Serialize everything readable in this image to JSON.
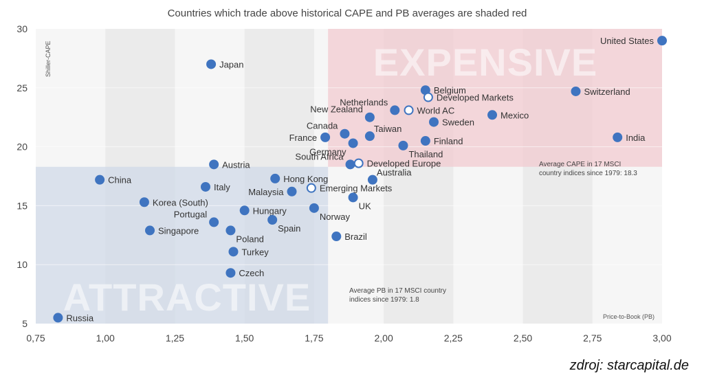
{
  "chart_data": {
    "type": "scatter",
    "title": "Countries which trade above historical CAPE and PB averages are shaded red",
    "xlabel": "Price-to-Book (PB)",
    "ylabel": "Shiller-CAPE",
    "xlim": [
      0.75,
      3.0
    ],
    "ylim": [
      5,
      30
    ],
    "x_ticks": [
      "0,75",
      "1,00",
      "1,25",
      "1,50",
      "1,75",
      "2,00",
      "2,25",
      "2,50",
      "2,75",
      "3,00"
    ],
    "y_ticks": [
      "5",
      "10",
      "15",
      "20",
      "25",
      "30"
    ],
    "avg_pb": 1.8,
    "avg_cape": 18.3,
    "zones": {
      "expensive": "EXPENSIVE",
      "attractive": "ATTRACTIVE"
    },
    "notes": {
      "cape_line1": "Average CAPE in 17 MSCI",
      "cape_line2": "country indices since 1979: 18.3",
      "pb_line1": "Average PB in 17 MSCI country",
      "pb_line2": "indices since 1979: 1.8"
    },
    "colors": {
      "expensive": "#f2c9cf",
      "attractive": "#cfd9e8",
      "point": "#3f74c0",
      "aggregate_fill": "#ffffff"
    },
    "points": [
      {
        "name": "United States",
        "x": 3.0,
        "y": 29.0,
        "label_pos": "left"
      },
      {
        "name": "Japan",
        "x": 1.38,
        "y": 27.0,
        "label_pos": "right"
      },
      {
        "name": "Belgium",
        "x": 2.15,
        "y": 24.8,
        "label_pos": "right"
      },
      {
        "name": "Switzerland",
        "x": 2.69,
        "y": 24.7,
        "label_pos": "right"
      },
      {
        "name": "Developed Markets",
        "x": 2.16,
        "y": 24.2,
        "aggregate": true,
        "label_pos": "right"
      },
      {
        "name": "Netherlands",
        "x": 2.04,
        "y": 23.1,
        "label_pos": "above-left"
      },
      {
        "name": "World AC",
        "x": 2.09,
        "y": 23.1,
        "aggregate": true,
        "label_pos": "right"
      },
      {
        "name": "Mexico",
        "x": 2.39,
        "y": 22.7,
        "label_pos": "right"
      },
      {
        "name": "New Zealand",
        "x": 1.95,
        "y": 22.5,
        "label_pos": "left-up"
      },
      {
        "name": "Sweden",
        "x": 2.18,
        "y": 22.1,
        "label_pos": "right"
      },
      {
        "name": "Canada",
        "x": 1.86,
        "y": 21.1,
        "label_pos": "left-up"
      },
      {
        "name": "Taiwan",
        "x": 1.95,
        "y": 20.9,
        "label_pos": "right-up"
      },
      {
        "name": "India",
        "x": 2.84,
        "y": 20.8,
        "label_pos": "right"
      },
      {
        "name": "France",
        "x": 1.79,
        "y": 20.8,
        "label_pos": "left"
      },
      {
        "name": "Finland",
        "x": 2.15,
        "y": 20.5,
        "label_pos": "right"
      },
      {
        "name": "Germany",
        "x": 1.89,
        "y": 20.3,
        "label_pos": "left-down"
      },
      {
        "name": "Thailand",
        "x": 2.07,
        "y": 20.1,
        "label_pos": "right-down"
      },
      {
        "name": "South Africa",
        "x": 1.88,
        "y": 18.5,
        "label_pos": "left-up"
      },
      {
        "name": "Developed Europe",
        "x": 1.91,
        "y": 18.6,
        "aggregate": true,
        "label_pos": "right"
      },
      {
        "name": "Austria",
        "x": 1.39,
        "y": 18.5,
        "label_pos": "right"
      },
      {
        "name": "China",
        "x": 0.98,
        "y": 17.2,
        "label_pos": "right"
      },
      {
        "name": "Hong Kong",
        "x": 1.61,
        "y": 17.3,
        "label_pos": "right"
      },
      {
        "name": "Australia",
        "x": 1.96,
        "y": 17.2,
        "label_pos": "right-up"
      },
      {
        "name": "Italy",
        "x": 1.36,
        "y": 16.6,
        "label_pos": "right"
      },
      {
        "name": "Emerging Markets",
        "x": 1.74,
        "y": 16.5,
        "aggregate": true,
        "label_pos": "right"
      },
      {
        "name": "Malaysia",
        "x": 1.67,
        "y": 16.2,
        "label_pos": "left"
      },
      {
        "name": "UK",
        "x": 1.89,
        "y": 15.7,
        "label_pos": "right-down"
      },
      {
        "name": "Korea (South)",
        "x": 1.14,
        "y": 15.3,
        "label_pos": "right"
      },
      {
        "name": "Hungary",
        "x": 1.5,
        "y": 14.6,
        "label_pos": "right"
      },
      {
        "name": "Norway",
        "x": 1.75,
        "y": 14.8,
        "label_pos": "right-down"
      },
      {
        "name": "Portugal",
        "x": 1.39,
        "y": 13.6,
        "label_pos": "left-up"
      },
      {
        "name": "Spain",
        "x": 1.6,
        "y": 13.8,
        "label_pos": "right-down"
      },
      {
        "name": "Singapore",
        "x": 1.16,
        "y": 12.9,
        "label_pos": "right"
      },
      {
        "name": "Poland",
        "x": 1.45,
        "y": 12.9,
        "label_pos": "right-down"
      },
      {
        "name": "Brazil",
        "x": 1.83,
        "y": 12.4,
        "label_pos": "right"
      },
      {
        "name": "Turkey",
        "x": 1.46,
        "y": 11.1,
        "label_pos": "right"
      },
      {
        "name": "Czech",
        "x": 1.45,
        "y": 9.3,
        "label_pos": "right"
      },
      {
        "name": "Russia",
        "x": 0.83,
        "y": 5.5,
        "label_pos": "right"
      }
    ]
  },
  "source": "zdroj: starcapital.de"
}
